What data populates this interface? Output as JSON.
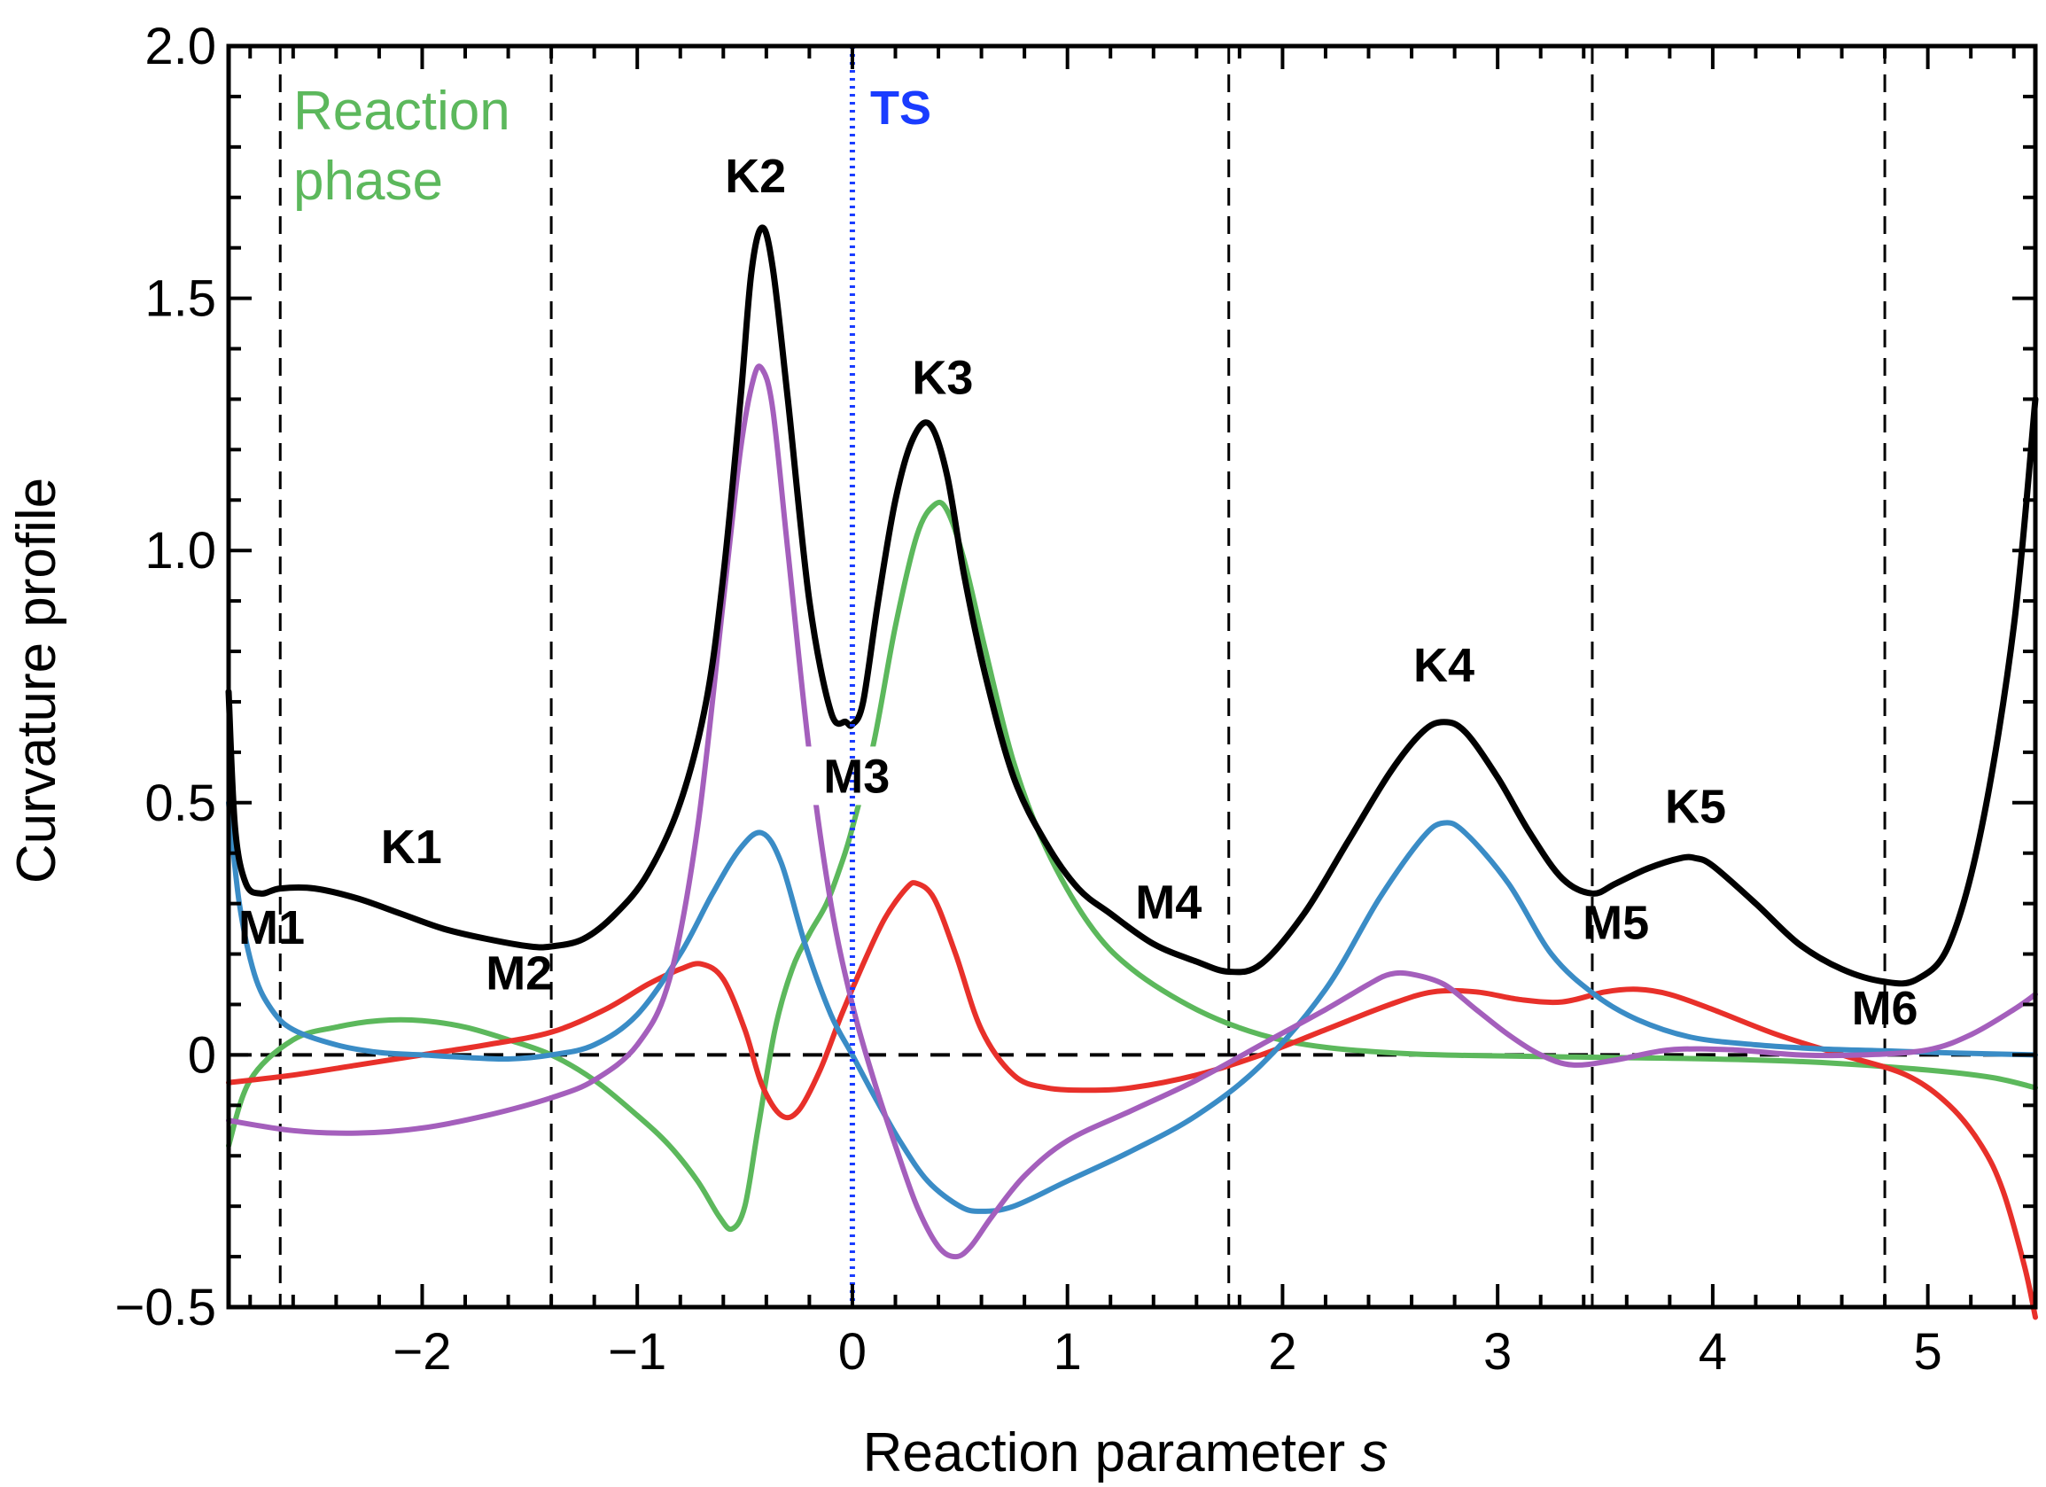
{
  "chart_data": {
    "type": "line",
    "title": "",
    "xlabel": "Reaction parameter ",
    "xlabel_italic": "s",
    "ylabel": "Curvature profile",
    "xlim": [
      -2.9,
      5.5
    ],
    "ylim": [
      -0.5,
      2.0
    ],
    "x_ticks": [
      -2,
      -1,
      0,
      1,
      2,
      3,
      4,
      5
    ],
    "x_tick_labels": [
      "−2",
      "−1",
      "0",
      "1",
      "2",
      "3",
      "4",
      "5"
    ],
    "y_ticks": [
      -0.5,
      0,
      0.5,
      1.0,
      1.5,
      2.0
    ],
    "y_tick_labels": [
      "−0.5",
      "0",
      "0.5",
      "1.0",
      "1.5",
      "2.0"
    ],
    "phase_label_line1": "Reaction",
    "phase_label_line2": "phase",
    "phase_boundaries": [
      -2.66,
      -1.4,
      1.75,
      3.44,
      4.8
    ],
    "ts": {
      "x": 0,
      "label": "TS"
    },
    "zero_line": 0,
    "colors": {
      "total": "#000000",
      "blue": "#3a8cc6",
      "red": "#e8302a",
      "green": "#5cb85c",
      "purple": "#a45fbc",
      "ts": "#1a3cff"
    },
    "series": [
      {
        "name": "total",
        "color": "#000000",
        "x": [
          -2.9,
          -2.87,
          -2.82,
          -2.75,
          -2.66,
          -2.5,
          -2.3,
          -2.1,
          -1.9,
          -1.7,
          -1.5,
          -1.4,
          -1.25,
          -1.1,
          -0.95,
          -0.8,
          -0.68,
          -0.6,
          -0.52,
          -0.47,
          -0.42,
          -0.37,
          -0.3,
          -0.2,
          -0.1,
          -0.03,
          0.0,
          0.05,
          0.12,
          0.2,
          0.28,
          0.36,
          0.44,
          0.52,
          0.62,
          0.75,
          0.9,
          1.05,
          1.2,
          1.4,
          1.6,
          1.75,
          1.9,
          2.1,
          2.3,
          2.5,
          2.65,
          2.75,
          2.85,
          3.0,
          3.15,
          3.3,
          3.44,
          3.55,
          3.7,
          3.85,
          3.92,
          4.0,
          4.2,
          4.4,
          4.6,
          4.8,
          4.95,
          5.1,
          5.25,
          5.4,
          5.5
        ],
        "y": [
          0.72,
          0.45,
          0.34,
          0.32,
          0.33,
          0.33,
          0.31,
          0.28,
          0.25,
          0.23,
          0.215,
          0.215,
          0.23,
          0.28,
          0.36,
          0.5,
          0.7,
          0.95,
          1.3,
          1.55,
          1.64,
          1.56,
          1.3,
          0.9,
          0.68,
          0.66,
          0.655,
          0.7,
          0.9,
          1.1,
          1.22,
          1.25,
          1.15,
          0.95,
          0.75,
          0.55,
          0.42,
          0.33,
          0.28,
          0.22,
          0.185,
          0.165,
          0.18,
          0.28,
          0.42,
          0.56,
          0.64,
          0.66,
          0.64,
          0.55,
          0.44,
          0.35,
          0.32,
          0.34,
          0.37,
          0.39,
          0.39,
          0.375,
          0.3,
          0.22,
          0.17,
          0.145,
          0.15,
          0.22,
          0.45,
          0.85,
          1.3
        ]
      },
      {
        "name": "blue",
        "color": "#3a8cc6",
        "x": [
          -2.9,
          -2.85,
          -2.78,
          -2.7,
          -2.6,
          -2.4,
          -2.2,
          -2.0,
          -1.8,
          -1.6,
          -1.4,
          -1.2,
          -1.0,
          -0.8,
          -0.65,
          -0.52,
          -0.42,
          -0.33,
          -0.22,
          -0.1,
          0.0,
          0.1,
          0.22,
          0.35,
          0.5,
          0.6,
          0.75,
          1.0,
          1.3,
          1.6,
          1.9,
          2.2,
          2.45,
          2.65,
          2.75,
          2.85,
          3.05,
          3.25,
          3.45,
          3.65,
          3.9,
          4.2,
          4.5,
          4.8,
          5.1,
          5.5
        ],
        "y": [
          0.5,
          0.3,
          0.16,
          0.09,
          0.05,
          0.02,
          0.005,
          0.0,
          -0.005,
          -0.008,
          0.0,
          0.02,
          0.08,
          0.2,
          0.32,
          0.41,
          0.44,
          0.38,
          0.22,
          0.08,
          0.0,
          -0.08,
          -0.17,
          -0.25,
          -0.3,
          -0.31,
          -0.3,
          -0.25,
          -0.19,
          -0.12,
          -0.02,
          0.13,
          0.31,
          0.43,
          0.46,
          0.44,
          0.34,
          0.2,
          0.12,
          0.07,
          0.035,
          0.02,
          0.012,
          0.008,
          0.004,
          0.0
        ]
      },
      {
        "name": "red",
        "color": "#e8302a",
        "x": [
          -2.9,
          -2.6,
          -2.3,
          -2.0,
          -1.7,
          -1.4,
          -1.15,
          -0.95,
          -0.8,
          -0.7,
          -0.6,
          -0.5,
          -0.42,
          -0.33,
          -0.25,
          -0.15,
          -0.05,
          0.05,
          0.15,
          0.25,
          0.3,
          0.38,
          0.48,
          0.6,
          0.75,
          0.9,
          1.1,
          1.3,
          1.6,
          1.9,
          2.2,
          2.5,
          2.7,
          2.9,
          3.1,
          3.3,
          3.5,
          3.65,
          3.8,
          4.0,
          4.3,
          4.6,
          4.9,
          5.1,
          5.25,
          5.35,
          5.45,
          5.5
        ],
        "y": [
          -0.055,
          -0.04,
          -0.02,
          0.0,
          0.02,
          0.045,
          0.09,
          0.14,
          0.17,
          0.18,
          0.15,
          0.05,
          -0.06,
          -0.12,
          -0.11,
          -0.03,
          0.08,
          0.18,
          0.27,
          0.33,
          0.34,
          0.31,
          0.2,
          0.05,
          -0.04,
          -0.065,
          -0.07,
          -0.065,
          -0.04,
          0.0,
          0.05,
          0.1,
          0.125,
          0.125,
          0.11,
          0.105,
          0.125,
          0.13,
          0.12,
          0.09,
          0.04,
          0.0,
          -0.04,
          -0.1,
          -0.18,
          -0.27,
          -0.42,
          -0.52
        ]
      },
      {
        "name": "green",
        "color": "#5cb85c",
        "x": [
          -2.9,
          -2.8,
          -2.6,
          -2.4,
          -2.2,
          -2.0,
          -1.8,
          -1.6,
          -1.4,
          -1.2,
          -1.0,
          -0.85,
          -0.72,
          -0.62,
          -0.56,
          -0.5,
          -0.44,
          -0.36,
          -0.28,
          -0.2,
          -0.12,
          -0.05,
          0.0,
          0.1,
          0.2,
          0.3,
          0.38,
          0.44,
          0.52,
          0.62,
          0.75,
          0.9,
          1.1,
          1.3,
          1.6,
          1.9,
          2.2,
          2.6,
          3.0,
          3.5,
          4.0,
          4.5,
          5.0,
          5.3,
          5.5
        ],
        "y": [
          -0.18,
          -0.05,
          0.03,
          0.055,
          0.068,
          0.068,
          0.055,
          0.03,
          0.0,
          -0.05,
          -0.12,
          -0.18,
          -0.25,
          -0.32,
          -0.345,
          -0.3,
          -0.15,
          0.05,
          0.17,
          0.24,
          0.3,
          0.38,
          0.45,
          0.62,
          0.85,
          1.03,
          1.09,
          1.08,
          0.98,
          0.8,
          0.58,
          0.41,
          0.26,
          0.17,
          0.09,
          0.04,
          0.015,
          0.002,
          -0.002,
          -0.005,
          -0.008,
          -0.015,
          -0.03,
          -0.045,
          -0.065
        ]
      },
      {
        "name": "purple",
        "color": "#a45fbc",
        "x": [
          -2.9,
          -2.6,
          -2.3,
          -2.0,
          -1.7,
          -1.4,
          -1.2,
          -1.0,
          -0.85,
          -0.72,
          -0.6,
          -0.52,
          -0.46,
          -0.42,
          -0.37,
          -0.3,
          -0.2,
          -0.1,
          0.0,
          0.1,
          0.2,
          0.3,
          0.4,
          0.48,
          0.55,
          0.65,
          0.8,
          1.0,
          1.3,
          1.6,
          1.9,
          2.2,
          2.4,
          2.5,
          2.6,
          2.75,
          2.9,
          3.05,
          3.2,
          3.35,
          3.55,
          3.8,
          4.1,
          4.4,
          4.7,
          5.0,
          5.2,
          5.4,
          5.5
        ],
        "y": [
          -0.13,
          -0.15,
          -0.155,
          -0.145,
          -0.12,
          -0.085,
          -0.05,
          0.02,
          0.15,
          0.45,
          0.9,
          1.2,
          1.34,
          1.36,
          1.28,
          1.0,
          0.6,
          0.3,
          0.1,
          -0.05,
          -0.18,
          -0.3,
          -0.38,
          -0.4,
          -0.38,
          -0.32,
          -0.24,
          -0.17,
          -0.11,
          -0.05,
          0.02,
          0.09,
          0.14,
          0.16,
          0.16,
          0.14,
          0.09,
          0.04,
          0.0,
          -0.02,
          -0.01,
          0.01,
          0.01,
          0.0,
          0.0,
          0.01,
          0.04,
          0.09,
          0.12
        ]
      }
    ],
    "annotations": [
      {
        "text": "K1",
        "x": -2.05,
        "y": 0.38
      },
      {
        "text": "K2",
        "x": -0.45,
        "y": 1.71
      },
      {
        "text": "K3",
        "x": 0.42,
        "y": 1.31
      },
      {
        "text": "K4",
        "x": 2.75,
        "y": 0.74
      },
      {
        "text": "K5",
        "x": 3.92,
        "y": 0.46
      },
      {
        "text": "M1",
        "x": -2.7,
        "y": 0.22
      },
      {
        "text": "M2",
        "x": -1.55,
        "y": 0.13
      },
      {
        "text": "M3",
        "x": 0.02,
        "y": 0.52
      },
      {
        "text": "M4",
        "x": 1.47,
        "y": 0.27
      },
      {
        "text": "M5",
        "x": 3.55,
        "y": 0.23
      },
      {
        "text": "M6",
        "x": 4.8,
        "y": 0.06
      }
    ]
  }
}
